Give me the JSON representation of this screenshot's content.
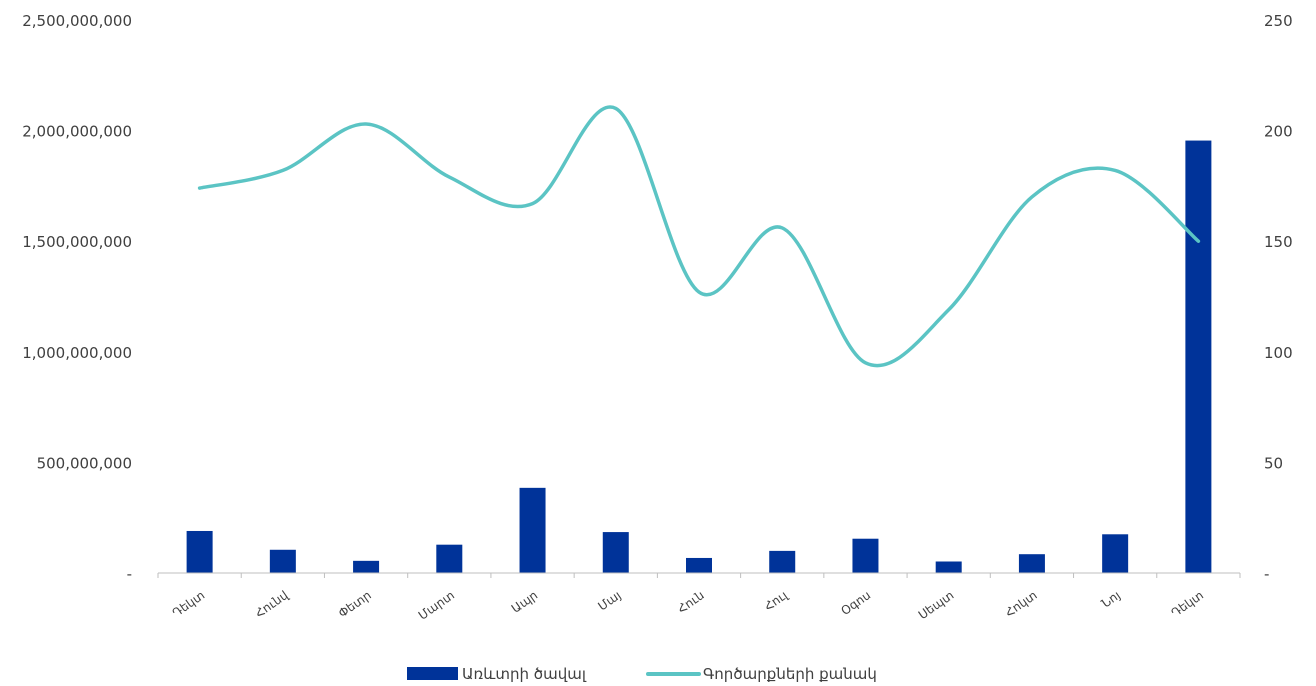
{
  "chart_data": {
    "type": "bar",
    "categories": [
      "Դեկտ",
      "Հունվ",
      "Փետր",
      "Մարտ",
      "Ապր",
      "Մայ",
      "Հուն",
      "Հուլ",
      "Օգոս",
      "Սեպտ",
      "Հոկտ",
      "Նոյ",
      "Դեկտ"
    ],
    "series": [
      {
        "name": "Առևտրի ծավալ",
        "type": "bar",
        "axis": "left",
        "color": "#003399",
        "values": [
          190000000,
          105000000,
          55000000,
          128000000,
          385000000,
          185000000,
          68000000,
          100000000,
          155000000,
          52000000,
          85000000,
          175000000,
          1955000000
        ]
      },
      {
        "name": "Գործարքների քանակ",
        "type": "line",
        "axis": "right",
        "color": "#5BC4C4",
        "smooth": true,
        "values": [
          174,
          182,
          203,
          179,
          167,
          210,
          127,
          156,
          95,
          119,
          170,
          182,
          150
        ]
      }
    ],
    "y_left": {
      "ylim": [
        0,
        2500000000
      ],
      "ticks": [
        0,
        500000000,
        1000000000,
        1500000000,
        2000000000,
        2500000000
      ],
      "tick_labels": [
        "-",
        "500,000,000",
        "1,000,000,000",
        "1,500,000,000",
        "2,000,000,000",
        "2,500,000,000"
      ]
    },
    "y_right": {
      "ylim": [
        0,
        250
      ],
      "ticks": [
        0,
        50,
        100,
        150,
        200,
        250
      ],
      "tick_labels": [
        "-",
        "50",
        "100",
        "150",
        "200",
        "250"
      ]
    },
    "grid": false,
    "legend": "bottom"
  }
}
